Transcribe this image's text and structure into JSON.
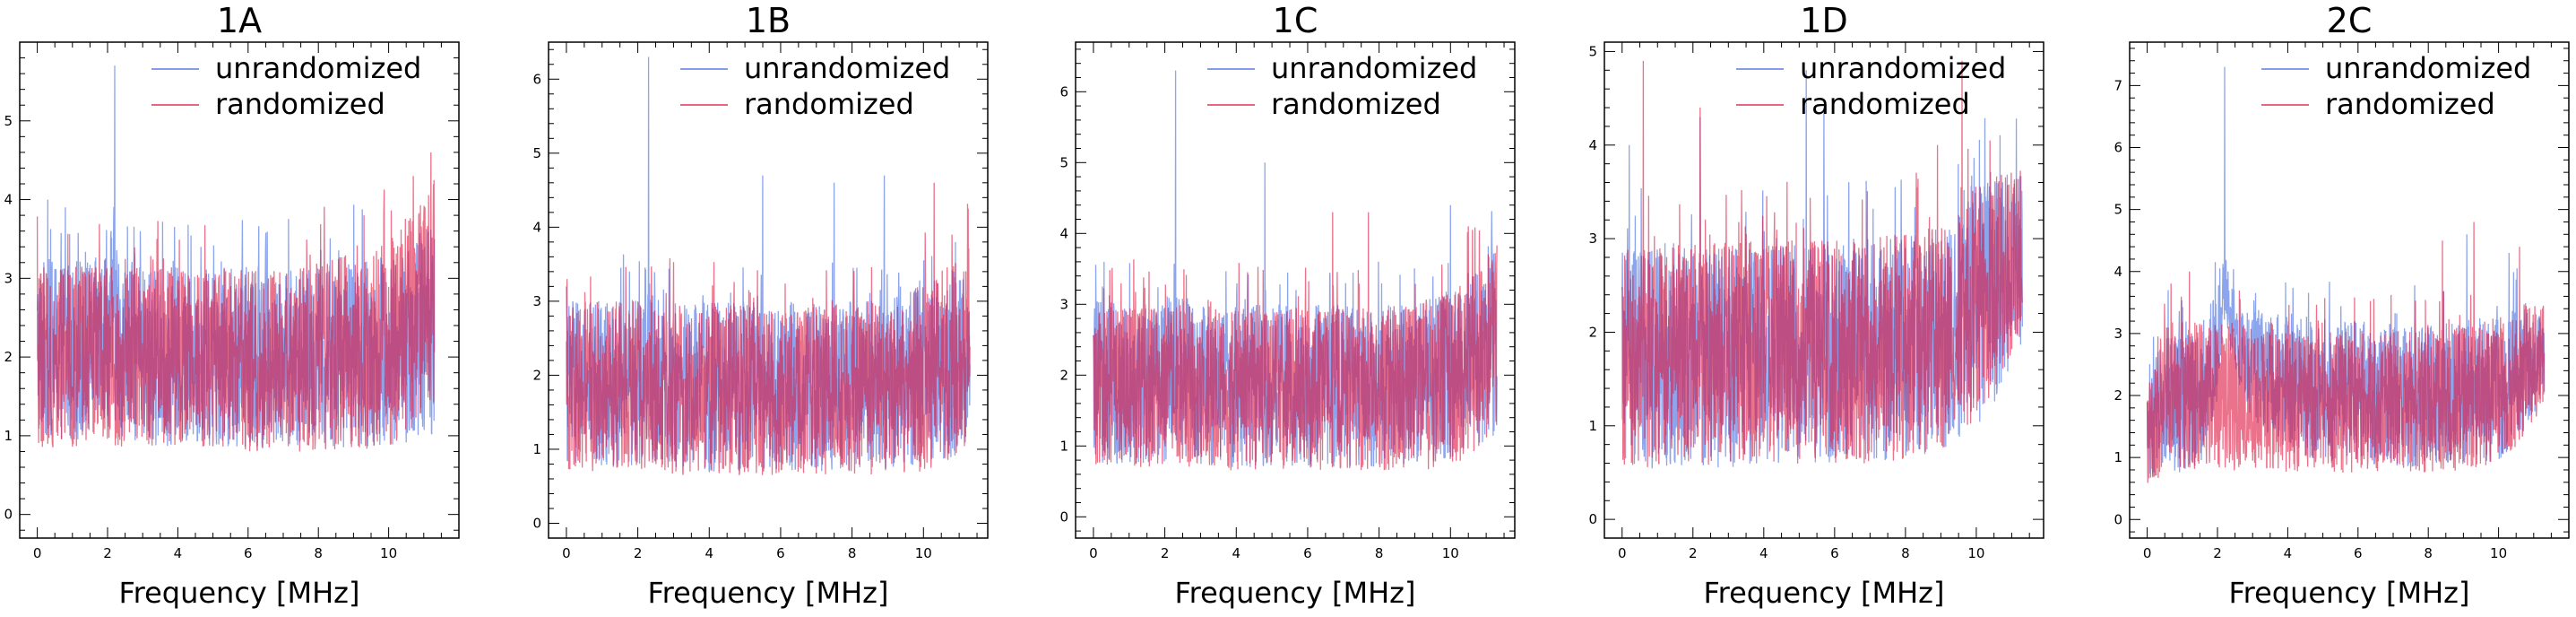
{
  "figure": {
    "background": "#ffffff"
  },
  "colors": {
    "unrandomized": "#4169e1",
    "randomized": "#dc143c"
  },
  "chart_data": [
    {
      "type": "line",
      "title": "1A",
      "xlabel": "Frequency [MHz]",
      "ylabel": "",
      "xlim": [
        -0.5,
        12.0
      ],
      "ylim": [
        -0.3,
        6.0
      ],
      "xticks": [
        0,
        2,
        4,
        6,
        8,
        10
      ],
      "yticks": [
        0,
        1,
        2,
        3,
        4,
        5
      ],
      "legend": {
        "position": "top-right",
        "entries": [
          "unrandomized",
          "randomized"
        ]
      },
      "series": [
        {
          "name": "unrandomized",
          "color": "#4169e1",
          "x": [
            0,
            0.5,
            1.0,
            1.5,
            2.0,
            2.1,
            2.2,
            2.3,
            2.5,
            3.0,
            4.0,
            5.0,
            6.0,
            7.0,
            8.0,
            9.0,
            10.0,
            10.5,
            11.0,
            11.3
          ],
          "center": [
            2.1,
            2.1,
            2.1,
            2.1,
            2.15,
            2.5,
            2.6,
            2.2,
            2.1,
            2.0,
            2.0,
            2.0,
            2.0,
            2.0,
            2.0,
            2.05,
            2.1,
            2.15,
            2.3,
            2.4
          ],
          "half_width": [
            1.0,
            1.0,
            1.0,
            1.0,
            1.0,
            1.1,
            1.2,
            1.0,
            1.0,
            1.0,
            1.0,
            1.0,
            1.0,
            1.0,
            1.0,
            1.05,
            1.05,
            1.1,
            1.15,
            1.2
          ],
          "peaks": [
            [
              2.2,
              5.7
            ],
            [
              0.3,
              4.0
            ],
            [
              0.8,
              3.9
            ],
            [
              11.3,
              3.5
            ]
          ]
        },
        {
          "name": "randomized",
          "color": "#dc143c",
          "x": [
            0,
            0.5,
            1.0,
            1.5,
            2.0,
            2.1,
            2.2,
            2.3,
            2.5,
            3.0,
            4.0,
            5.0,
            6.0,
            7.0,
            8.0,
            9.0,
            10.0,
            10.5,
            11.0,
            11.3
          ],
          "center": [
            2.0,
            2.0,
            2.0,
            2.0,
            2.0,
            2.1,
            2.0,
            2.0,
            2.0,
            2.0,
            2.0,
            2.0,
            1.95,
            1.95,
            2.0,
            2.05,
            2.15,
            2.3,
            2.6,
            2.8
          ],
          "half_width": [
            1.0,
            1.0,
            1.0,
            1.0,
            1.0,
            1.0,
            1.0,
            1.0,
            1.0,
            1.0,
            1.0,
            1.0,
            1.0,
            1.0,
            1.05,
            1.1,
            1.15,
            1.2,
            1.3,
            1.4
          ],
          "peaks": [
            [
              9.3,
              3.8
            ],
            [
              10.7,
              4.3
            ],
            [
              11.2,
              4.6
            ]
          ]
        }
      ]
    },
    {
      "type": "line",
      "title": "1B",
      "xlabel": "Frequency [MHz]",
      "ylabel": "",
      "xlim": [
        -0.5,
        11.8
      ],
      "ylim": [
        -0.2,
        6.5
      ],
      "xticks": [
        0,
        2,
        4,
        6,
        8,
        10
      ],
      "yticks": [
        0,
        1,
        2,
        3,
        4,
        5,
        6
      ],
      "legend": {
        "position": "top-right",
        "entries": [
          "unrandomized",
          "randomized"
        ]
      },
      "series": [
        {
          "name": "unrandomized",
          "color": "#4169e1",
          "x": [
            0,
            0.5,
            1.0,
            1.5,
            2.0,
            2.2,
            2.3,
            2.4,
            3.0,
            4.0,
            5.0,
            6.0,
            7.0,
            8.0,
            9.0,
            10.0,
            10.5,
            11.0,
            11.3
          ],
          "center": [
            1.9,
            1.9,
            1.9,
            1.9,
            1.9,
            2.2,
            2.4,
            2.0,
            1.85,
            1.85,
            1.85,
            1.85,
            1.85,
            1.85,
            1.9,
            2.0,
            2.1,
            2.2,
            2.3
          ],
          "half_width": [
            1.0,
            1.0,
            1.0,
            1.0,
            1.0,
            1.1,
            1.2,
            1.0,
            1.0,
            1.0,
            1.0,
            1.0,
            1.0,
            1.0,
            1.0,
            1.05,
            1.1,
            1.1,
            1.1
          ],
          "peaks": [
            [
              2.3,
              6.3
            ],
            [
              5.5,
              4.7
            ],
            [
              7.5,
              4.6
            ],
            [
              8.9,
              4.7
            ],
            [
              10.9,
              3.8
            ]
          ]
        },
        {
          "name": "randomized",
          "color": "#dc143c",
          "x": [
            0,
            0.5,
            1.0,
            1.5,
            2.0,
            2.2,
            2.3,
            2.4,
            3.0,
            4.0,
            5.0,
            6.0,
            7.0,
            8.0,
            9.0,
            10.0,
            10.5,
            11.0,
            11.3
          ],
          "center": [
            1.85,
            1.85,
            1.85,
            1.85,
            1.85,
            1.9,
            1.9,
            1.85,
            1.8,
            1.8,
            1.8,
            1.8,
            1.8,
            1.8,
            1.85,
            1.95,
            2.1,
            2.25,
            2.4
          ],
          "half_width": [
            1.0,
            1.0,
            1.0,
            1.0,
            1.0,
            1.0,
            1.0,
            1.0,
            1.0,
            1.0,
            1.0,
            1.0,
            1.0,
            1.0,
            1.05,
            1.1,
            1.15,
            1.2,
            1.2
          ],
          "peaks": [
            [
              10.3,
              4.6
            ],
            [
              10.8,
              3.9
            ]
          ]
        }
      ]
    },
    {
      "type": "line",
      "title": "1C",
      "xlabel": "Frequency [MHz]",
      "ylabel": "",
      "xlim": [
        -0.5,
        11.8
      ],
      "ylim": [
        -0.3,
        6.7
      ],
      "xticks": [
        0,
        2,
        4,
        6,
        8,
        10
      ],
      "yticks": [
        0,
        1,
        2,
        3,
        4,
        5,
        6
      ],
      "legend": {
        "position": "top-right",
        "entries": [
          "unrandomized",
          "randomized"
        ]
      },
      "series": [
        {
          "name": "unrandomized",
          "color": "#4169e1",
          "x": [
            0,
            0.5,
            1.0,
            1.5,
            2.0,
            2.2,
            2.3,
            2.4,
            3.0,
            4.0,
            5.0,
            6.0,
            7.0,
            8.0,
            9.0,
            10.0,
            10.5,
            11.0,
            11.3
          ],
          "center": [
            1.9,
            1.9,
            1.9,
            1.9,
            1.9,
            2.2,
            2.4,
            2.0,
            1.85,
            1.85,
            1.85,
            1.85,
            1.85,
            1.85,
            1.9,
            2.0,
            2.2,
            2.4,
            2.5
          ],
          "half_width": [
            1.0,
            1.0,
            1.0,
            1.0,
            1.0,
            1.1,
            1.2,
            1.0,
            1.0,
            1.0,
            1.0,
            1.0,
            1.0,
            1.0,
            1.0,
            1.05,
            1.1,
            1.15,
            1.2
          ],
          "peaks": [
            [
              2.3,
              6.3
            ],
            [
              4.8,
              5.0
            ],
            [
              10.0,
              4.4
            ],
            [
              0.3,
              3.6
            ]
          ]
        },
        {
          "name": "randomized",
          "color": "#dc143c",
          "x": [
            0,
            0.5,
            1.0,
            1.5,
            2.0,
            2.2,
            2.3,
            2.4,
            3.0,
            4.0,
            5.0,
            6.0,
            7.0,
            8.0,
            9.0,
            10.0,
            10.5,
            11.0,
            11.3
          ],
          "center": [
            1.85,
            1.85,
            1.85,
            1.85,
            1.85,
            1.9,
            1.9,
            1.85,
            1.8,
            1.8,
            1.8,
            1.8,
            1.8,
            1.8,
            1.85,
            1.95,
            2.1,
            2.3,
            2.5
          ],
          "half_width": [
            1.0,
            1.0,
            1.0,
            1.0,
            1.0,
            1.0,
            1.0,
            1.0,
            1.0,
            1.0,
            1.0,
            1.0,
            1.0,
            1.0,
            1.05,
            1.1,
            1.15,
            1.2,
            1.2
          ],
          "peaks": [
            [
              6.7,
              4.3
            ],
            [
              7.7,
              4.3
            ],
            [
              10.5,
              4.1
            ]
          ]
        }
      ]
    },
    {
      "type": "line",
      "title": "1D",
      "xlabel": "Frequency [MHz]",
      "ylabel": "",
      "xlim": [
        -0.5,
        11.9
      ],
      "ylim": [
        -0.2,
        5.1
      ],
      "xticks": [
        0,
        2,
        4,
        6,
        8,
        10
      ],
      "yticks": [
        0,
        1,
        2,
        3,
        4,
        5
      ],
      "legend": {
        "position": "top-right",
        "entries": [
          "unrandomized",
          "randomized"
        ]
      },
      "series": [
        {
          "name": "unrandomized",
          "color": "#4169e1",
          "x": [
            0,
            0.5,
            1.0,
            1.5,
            2.0,
            3.0,
            4.0,
            5.0,
            6.0,
            7.0,
            8.0,
            9.0,
            9.5,
            10.0,
            10.5,
            11.0,
            11.3
          ],
          "center": [
            1.7,
            1.75,
            1.75,
            1.75,
            1.75,
            1.75,
            1.8,
            1.8,
            1.8,
            1.8,
            1.85,
            1.95,
            2.05,
            2.25,
            2.5,
            2.7,
            2.8
          ],
          "half_width": [
            1.0,
            1.05,
            1.05,
            1.05,
            1.05,
            1.05,
            1.05,
            1.05,
            1.05,
            1.05,
            1.05,
            1.05,
            1.05,
            1.1,
            1.1,
            0.9,
            0.8
          ],
          "peaks": [
            [
              0.2,
              4.0
            ],
            [
              2.2,
              4.3
            ],
            [
              5.2,
              4.8
            ],
            [
              5.7,
              4.4
            ]
          ]
        },
        {
          "name": "randomized",
          "color": "#dc143c",
          "x": [
            0,
            0.5,
            1.0,
            1.5,
            2.0,
            3.0,
            4.0,
            5.0,
            6.0,
            7.0,
            8.0,
            9.0,
            9.5,
            10.0,
            10.5,
            11.0,
            11.3
          ],
          "center": [
            1.7,
            1.75,
            1.75,
            1.75,
            1.75,
            1.75,
            1.8,
            1.8,
            1.8,
            1.8,
            1.85,
            1.95,
            2.1,
            2.3,
            2.55,
            2.75,
            2.85
          ],
          "half_width": [
            1.0,
            1.05,
            1.05,
            1.05,
            1.05,
            1.05,
            1.05,
            1.05,
            1.05,
            1.05,
            1.05,
            1.05,
            1.05,
            1.1,
            1.0,
            0.85,
            0.8
          ],
          "peaks": [
            [
              0.6,
              4.9
            ],
            [
              2.2,
              4.4
            ],
            [
              9.6,
              4.9
            ],
            [
              8.9,
              4.0
            ]
          ]
        }
      ]
    },
    {
      "type": "line",
      "title": "2C",
      "xlabel": "Frequency [MHz]",
      "ylabel": "",
      "xlim": [
        -0.5,
        12.0
      ],
      "ylim": [
        -0.3,
        7.7
      ],
      "xticks": [
        0,
        2,
        4,
        6,
        8,
        10
      ],
      "yticks": [
        0,
        1,
        2,
        3,
        4,
        5,
        6,
        7
      ],
      "legend": {
        "position": "top-right",
        "entries": [
          "unrandomized",
          "randomized"
        ]
      },
      "series": [
        {
          "name": "unrandomized",
          "color": "#4169e1",
          "x": [
            0,
            0.3,
            0.6,
            1.0,
            1.5,
            2.0,
            2.2,
            2.4,
            2.6,
            2.8,
            3.0,
            4.0,
            5.0,
            6.0,
            7.0,
            8.0,
            9.0,
            10.0,
            10.5,
            11.0,
            11.3
          ],
          "center": [
            1.3,
            1.7,
            1.9,
            1.9,
            2.0,
            2.8,
            3.8,
            3.2,
            2.9,
            2.7,
            2.5,
            2.2,
            2.1,
            2.05,
            2.0,
            2.0,
            2.05,
            2.15,
            2.35,
            2.6,
            2.7
          ],
          "half_width": [
            0.7,
            0.9,
            1.0,
            1.0,
            1.0,
            0.8,
            0.5,
            0.5,
            0.6,
            0.7,
            0.8,
            1.0,
            1.0,
            1.0,
            1.0,
            1.0,
            1.0,
            1.05,
            1.0,
            0.8,
            0.6
          ],
          "peaks": [
            [
              2.2,
              7.3
            ],
            [
              0.6,
              3.7
            ],
            [
              9.1,
              4.6
            ],
            [
              10.3,
              4.3
            ]
          ]
        },
        {
          "name": "randomized",
          "color": "#dc143c",
          "x": [
            0,
            0.3,
            0.6,
            1.0,
            1.5,
            2.0,
            2.2,
            2.4,
            2.6,
            2.8,
            3.0,
            4.0,
            5.0,
            6.0,
            7.0,
            8.0,
            9.0,
            10.0,
            10.5,
            11.0,
            11.3
          ],
          "center": [
            1.3,
            1.8,
            2.0,
            2.0,
            2.0,
            2.0,
            2.0,
            2.0,
            2.0,
            2.0,
            1.95,
            1.9,
            1.9,
            1.9,
            1.9,
            1.9,
            1.95,
            2.1,
            2.3,
            2.55,
            2.7
          ],
          "half_width": [
            0.7,
            1.0,
            1.05,
            1.05,
            1.05,
            1.05,
            1.05,
            1.05,
            1.05,
            1.05,
            1.0,
            1.0,
            1.0,
            1.0,
            1.0,
            1.0,
            1.0,
            1.05,
            1.05,
            0.85,
            0.7
          ],
          "peaks": [
            [
              1.2,
              4.0
            ],
            [
              8.4,
              4.5
            ],
            [
              9.3,
              4.8
            ],
            [
              10.6,
              4.4
            ]
          ]
        }
      ]
    }
  ]
}
